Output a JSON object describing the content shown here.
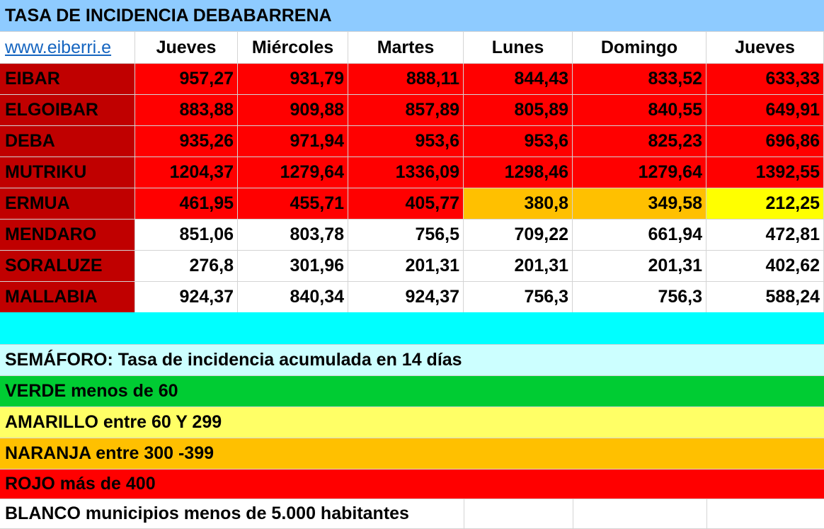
{
  "title": "TASA DE INCIDENCIA DEBABARRENA",
  "link_text": "www.eiberri.e",
  "headers": [
    "Jueves",
    "Miércoles",
    "Martes",
    "Lunes",
    "Domingo",
    "Jueves"
  ],
  "rows": [
    {
      "name": "EIBAR",
      "values": [
        "957,27",
        "931,79",
        "888,11",
        "844,43",
        "833,52",
        "633,33"
      ],
      "colors": [
        "red",
        "red",
        "red",
        "red",
        "red",
        "red"
      ]
    },
    {
      "name": "ELGOIBAR",
      "values": [
        "883,88",
        "909,88",
        "857,89",
        "805,89",
        "840,55",
        "649,91"
      ],
      "colors": [
        "red",
        "red",
        "red",
        "red",
        "red",
        "red"
      ]
    },
    {
      "name": "DEBA",
      "values": [
        "935,26",
        "971,94",
        "953,6",
        "953,6",
        "825,23",
        "696,86"
      ],
      "colors": [
        "red",
        "red",
        "red",
        "red",
        "red",
        "red"
      ]
    },
    {
      "name": "MUTRIKU",
      "values": [
        "1204,37",
        "1279,64",
        "1336,09",
        "1298,46",
        "1279,64",
        "1392,55"
      ],
      "colors": [
        "red",
        "red",
        "red",
        "red",
        "red",
        "red"
      ]
    },
    {
      "name": "ERMUA",
      "values": [
        "461,95",
        "455,71",
        "405,77",
        "380,8",
        "349,58",
        "212,25"
      ],
      "colors": [
        "red",
        "red",
        "red",
        "orange",
        "orange",
        "yellow"
      ]
    },
    {
      "name": "MENDARO",
      "values": [
        "851,06",
        "803,78",
        "756,5",
        "709,22",
        "661,94",
        "472,81"
      ],
      "colors": [
        "white",
        "white",
        "white",
        "white",
        "white",
        "white"
      ]
    },
    {
      "name": "SORALUZE",
      "values": [
        "276,8",
        "301,96",
        "201,31",
        "201,31",
        "201,31",
        "402,62"
      ],
      "colors": [
        "white",
        "white",
        "white",
        "white",
        "white",
        "white"
      ]
    },
    {
      "name": "MALLABIA",
      "values": [
        "924,37",
        "840,34",
        "924,37",
        "756,3",
        "756,3",
        "588,24"
      ],
      "colors": [
        "white",
        "white",
        "white",
        "white",
        "white",
        "white"
      ]
    }
  ],
  "legend": {
    "heading": "SEMÁFORO:  Tasa de incidencia acumulada en 14 días",
    "green": "VERDE menos de 60",
    "yellow": "AMARILLO entre 60 Y 299",
    "orange": "NARANJA entre 300 -399",
    "red": "ROJO más de 400",
    "white": "BLANCO municipios menos de 5.000 habitantes"
  },
  "colors": {
    "title_bg": "#8ecbff",
    "name_bg": "#c00000",
    "red": "#ff0000",
    "orange": "#ffc000",
    "yellow": "#ffff00",
    "cyan": "#00ffff",
    "green": "#00cc33"
  }
}
